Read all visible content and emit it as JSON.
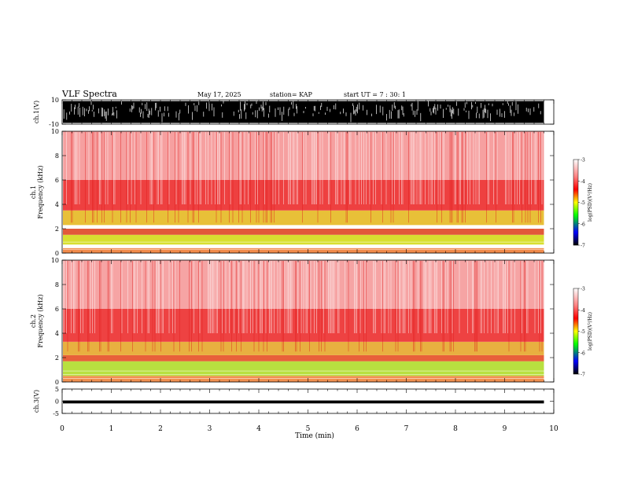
{
  "header": {
    "title": "VLF Spectra",
    "date": "May 17, 2025",
    "station": "station= KAP",
    "start": "start UT =  7 : 30: 1"
  },
  "chart_data": [
    {
      "type": "line",
      "name": "ch1-waveform",
      "ylabel": "ch.1(V)",
      "xlim": [
        0,
        10
      ],
      "ylim": [
        -10,
        10
      ],
      "y_ticks": [
        "10",
        "-10"
      ],
      "envelope": {
        "upper": 9,
        "lower": -9
      },
      "data_until": 9.8
    },
    {
      "type": "heatmap",
      "name": "ch1-spectrogram",
      "ylabel": "ch.1\nFrequency (kHz)",
      "xlim": [
        0,
        10
      ],
      "ylim": [
        0,
        10
      ],
      "y_ticks": [
        "0",
        "2",
        "4",
        "6",
        "8",
        "10"
      ],
      "data_until": 9.8,
      "bands": [
        {
          "from": 0.0,
          "to": 0.4,
          "color": "#f08a4a"
        },
        {
          "from": 0.7,
          "to": 1.5,
          "color": "#d8e030"
        },
        {
          "from": 1.5,
          "to": 2.0,
          "color": "#e25a3a"
        },
        {
          "from": 2.3,
          "to": 3.5,
          "color": "#e8c038"
        },
        {
          "from": 3.5,
          "to": 6.0,
          "color": "#ee4040"
        },
        {
          "from": 6.0,
          "to": 10.0,
          "color": "#f6a0a0"
        }
      ],
      "colorbar": {
        "label": "log(PSD)(V²/Hz)",
        "ticks": [
          "-3",
          "-4",
          "-5",
          "-6",
          "-7"
        ],
        "range": [
          -7,
          -3
        ],
        "colors": [
          "#ffffff",
          "#ff0000",
          "#00ff00",
          "#0000ff",
          "#000000"
        ]
      }
    },
    {
      "type": "heatmap",
      "name": "ch2-spectrogram",
      "ylabel": "ch.2\nFrequency (kHz)",
      "xlim": [
        0,
        10
      ],
      "ylim": [
        0,
        10
      ],
      "y_ticks": [
        "0",
        "2",
        "4",
        "6",
        "8",
        "10"
      ],
      "data_until": 9.8,
      "bands": [
        {
          "from": 0.0,
          "to": 0.5,
          "color": "#f09050"
        },
        {
          "from": 0.5,
          "to": 1.7,
          "color": "#b8e040"
        },
        {
          "from": 1.7,
          "to": 2.2,
          "color": "#e8603a"
        },
        {
          "from": 2.2,
          "to": 3.3,
          "color": "#e8b040"
        },
        {
          "from": 3.3,
          "to": 6.0,
          "color": "#ee4242"
        },
        {
          "from": 6.0,
          "to": 10.0,
          "color": "#f6a4a4"
        }
      ],
      "colorbar": {
        "label": "log(PSD)(V²/Hz)",
        "ticks": [
          "-3",
          "-4",
          "-5",
          "-6",
          "-7"
        ],
        "range": [
          -7,
          -3
        ],
        "colors": [
          "#ffffff",
          "#ff0000",
          "#00ff00",
          "#0000ff",
          "#000000"
        ]
      }
    },
    {
      "type": "line",
      "name": "ch3-waveform",
      "ylabel": "ch.3(V)",
      "xlim": [
        0,
        10
      ],
      "ylim": [
        -5,
        5
      ],
      "y_ticks": [
        "5",
        "0",
        "-5"
      ],
      "envelope": {
        "upper": 0.3,
        "lower": -0.9
      },
      "data_until": 9.8
    }
  ],
  "xaxis": {
    "label": "Time (min)",
    "ticks": [
      "0",
      "1",
      "2",
      "3",
      "4",
      "5",
      "6",
      "7",
      "8",
      "9",
      "10"
    ]
  }
}
